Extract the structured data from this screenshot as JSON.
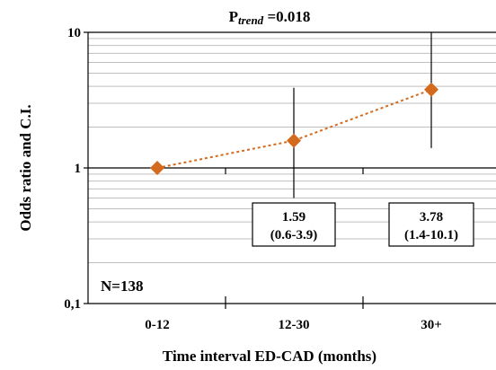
{
  "chart_data": {
    "type": "line",
    "title_prefix": "P",
    "title_subscript": "trend",
    "title_suffix": " =0.018",
    "ylabel": "Odds ratio and C.I.",
    "xlabel": "Time interval ED-CAD (months)",
    "y_scale": "log",
    "ylim": [
      0.1,
      10
    ],
    "y_ticks": [
      "0,1",
      "1",
      "10"
    ],
    "categories": [
      "0-12",
      "12-30",
      "30+"
    ],
    "series": [
      {
        "values": [
          1.0,
          1.59,
          3.78
        ],
        "ci_low": [
          null,
          0.6,
          1.4
        ],
        "ci_high": [
          null,
          3.9,
          10.1
        ],
        "color": "#d46a1e"
      }
    ],
    "annotations": [
      {
        "value": "1.59",
        "ci": "(0.6-3.9)"
      },
      {
        "value": "3.78",
        "ci": "(1.4-10.1)"
      }
    ],
    "sample_size": "N=138",
    "grid": true
  }
}
